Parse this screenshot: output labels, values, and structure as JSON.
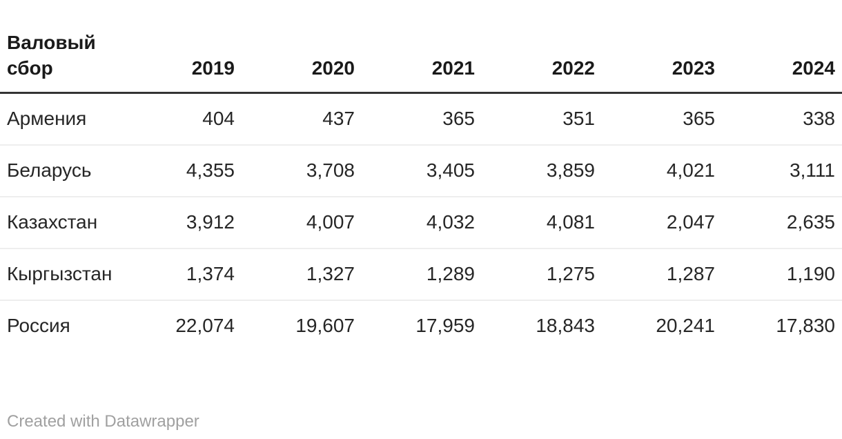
{
  "table": {
    "corner_title": "Валовый сбор",
    "columns": [
      "2019",
      "2020",
      "2021",
      "2022",
      "2023",
      "2024"
    ],
    "rows": [
      {
        "name": "Армения",
        "values": [
          "404",
          "437",
          "365",
          "351",
          "365",
          "338"
        ]
      },
      {
        "name": "Беларусь",
        "values": [
          "4,355",
          "3,708",
          "3,405",
          "3,859",
          "4,021",
          "3,111"
        ]
      },
      {
        "name": "Казахстан",
        "values": [
          "3,912",
          "4,007",
          "4,032",
          "4,081",
          "2,047",
          "2,635"
        ]
      },
      {
        "name": "Кыргызстан",
        "values": [
          "1,374",
          "1,327",
          "1,289",
          "1,275",
          "1,287",
          "1,190"
        ]
      },
      {
        "name": "Россия",
        "values": [
          "22,074",
          "19,607",
          "17,959",
          "18,843",
          "20,241",
          "17,830"
        ]
      }
    ]
  },
  "footer": {
    "attribution": "Created with Datawrapper"
  },
  "colors": {
    "header_border": "#333333",
    "row_border": "#eeeeee",
    "text": "#262626",
    "header_text": "#1a1a1a",
    "attribution_text": "#a0a0a0"
  },
  "chart_data": {
    "type": "table",
    "title": "Валовый сбор",
    "categories": [
      "2019",
      "2020",
      "2021",
      "2022",
      "2023",
      "2024"
    ],
    "series": [
      {
        "name": "Армения",
        "values": [
          404,
          437,
          365,
          351,
          365,
          338
        ]
      },
      {
        "name": "Беларусь",
        "values": [
          4355,
          3708,
          3405,
          3859,
          4021,
          3111
        ]
      },
      {
        "name": "Казахстан",
        "values": [
          3912,
          4007,
          4032,
          4081,
          2047,
          2635
        ]
      },
      {
        "name": "Кыргызстан",
        "values": [
          1374,
          1327,
          1289,
          1275,
          1287,
          1190
        ]
      },
      {
        "name": "Россия",
        "values": [
          22074,
          19607,
          17959,
          18843,
          20241,
          17830
        ]
      }
    ],
    "legend_position": "none",
    "grid": "horizontal-row-dividers"
  }
}
